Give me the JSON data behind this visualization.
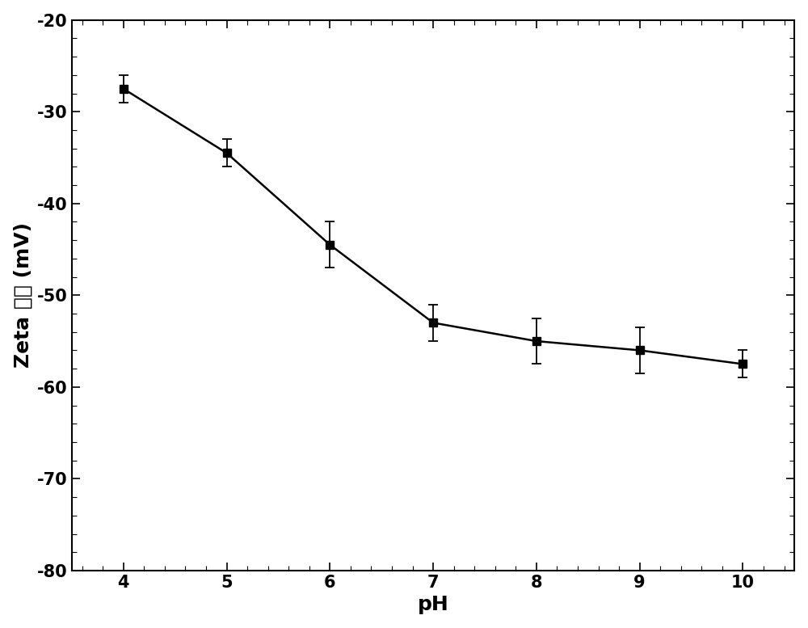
{
  "x": [
    4,
    5,
    6,
    7,
    8,
    9,
    10
  ],
  "y": [
    -27.5,
    -34.5,
    -44.5,
    -53.0,
    -55.0,
    -56.0,
    -57.5
  ],
  "yerr": [
    1.5,
    1.5,
    2.5,
    2.0,
    2.5,
    2.5,
    1.5
  ],
  "xlabel": "pH",
  "ylabel_latin": "Zeta ",
  "ylabel_chinese": "电势",
  "ylabel_unit": " (mV)",
  "xlim": [
    3.5,
    10.5
  ],
  "ylim": [
    -80,
    -20
  ],
  "yticks": [
    -80,
    -70,
    -60,
    -50,
    -40,
    -30,
    -20
  ],
  "xticks": [
    4,
    5,
    6,
    7,
    8,
    9,
    10
  ],
  "line_color": "#000000",
  "marker_color": "#000000",
  "marker": "s",
  "markersize": 7,
  "linewidth": 1.8,
  "background_color": "#ffffff",
  "xlabel_fontsize": 18,
  "ylabel_fontsize": 18,
  "tick_fontsize": 15,
  "xlabel_fontweight": "bold",
  "ylabel_fontweight": "bold"
}
